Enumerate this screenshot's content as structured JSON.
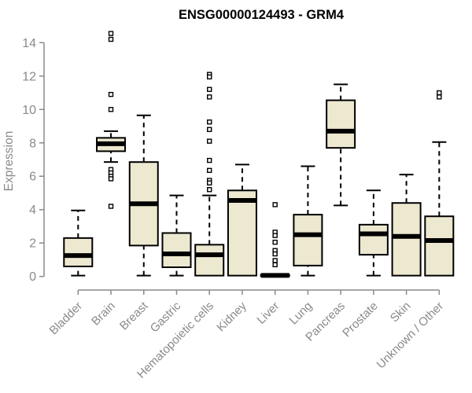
{
  "title": "ENSG00000124493 - GRM4",
  "chart_data": {
    "type": "box",
    "title": "ENSG00000124493 - GRM4",
    "xlabel": "",
    "ylabel": "Expression",
    "ylim": [
      0,
      14
    ],
    "yticks": [
      0,
      2,
      4,
      6,
      8,
      10,
      12,
      14
    ],
    "grid": false,
    "legend": "none",
    "categories": [
      "Bladder",
      "Brain",
      "Breast",
      "Gastric",
      "Hematopoietic cells",
      "Kidney",
      "Liver",
      "Lung",
      "Pancreas",
      "Prostate",
      "Skin",
      "Unknown / Other"
    ],
    "series": [
      {
        "name": "Bladder",
        "whisker_low": 0.05,
        "q1": 0.6,
        "median": 1.25,
        "q3": 2.3,
        "whisker_high": 3.95,
        "outliers": []
      },
      {
        "name": "Brain",
        "whisker_low": 6.85,
        "q1": 7.5,
        "median": 7.95,
        "q3": 8.3,
        "whisker_high": 8.7,
        "outliers": [
          14.55,
          14.2,
          10.9,
          10.0,
          6.4,
          6.2,
          6.0,
          5.85,
          4.2
        ]
      },
      {
        "name": "Breast",
        "whisker_low": 0.05,
        "q1": 1.85,
        "median": 4.35,
        "q3": 6.85,
        "whisker_high": 9.65,
        "outliers": []
      },
      {
        "name": "Gastric",
        "whisker_low": 0.05,
        "q1": 0.55,
        "median": 1.35,
        "q3": 2.6,
        "whisker_high": 4.85,
        "outliers": []
      },
      {
        "name": "Hematopoietic cells",
        "whisker_low": 0.0,
        "q1": 0.05,
        "median": 1.3,
        "q3": 1.9,
        "whisker_high": 4.85,
        "outliers": [
          12.1,
          11.95,
          11.2,
          10.75,
          9.25,
          8.8,
          8.1,
          6.95,
          6.35,
          5.75,
          5.6,
          5.2
        ]
      },
      {
        "name": "Kidney",
        "whisker_low": 0.05,
        "q1": 0.05,
        "median": 4.55,
        "q3": 5.15,
        "whisker_high": 6.7,
        "outliers": []
      },
      {
        "name": "Liver",
        "whisker_low": 0.0,
        "q1": 0.02,
        "median": 0.06,
        "q3": 0.1,
        "whisker_high": 0.12,
        "outliers": [
          4.3,
          2.65,
          2.45,
          2.05,
          1.55,
          1.35,
          0.95,
          0.7
        ]
      },
      {
        "name": "Lung",
        "whisker_low": 0.05,
        "q1": 0.65,
        "median": 2.5,
        "q3": 3.7,
        "whisker_high": 6.6,
        "outliers": []
      },
      {
        "name": "Pancreas",
        "whisker_low": 4.25,
        "q1": 7.7,
        "median": 8.7,
        "q3": 10.55,
        "whisker_high": 11.5,
        "outliers": []
      },
      {
        "name": "Prostate",
        "whisker_low": 0.05,
        "q1": 1.3,
        "median": 2.55,
        "q3": 3.1,
        "whisker_high": 5.15,
        "outliers": []
      },
      {
        "name": "Skin",
        "whisker_low": 0.05,
        "q1": 0.05,
        "median": 2.4,
        "q3": 4.4,
        "whisker_high": 6.1,
        "outliers": []
      },
      {
        "name": "Unknown / Other",
        "whisker_low": 0.05,
        "q1": 0.05,
        "median": 2.15,
        "q3": 3.6,
        "whisker_high": 8.05,
        "outliers": [
          11.0,
          10.75
        ]
      }
    ],
    "colors": {
      "box_fill": "#EDE8D0",
      "box_stroke": "#000000",
      "median": "#000000",
      "whisker": "#000000",
      "outlier_stroke": "#000000",
      "outlier_fill": "#FFFFFF",
      "axis": "#8a8a8a",
      "title": "#000000",
      "background": "#FFFFFF"
    }
  }
}
